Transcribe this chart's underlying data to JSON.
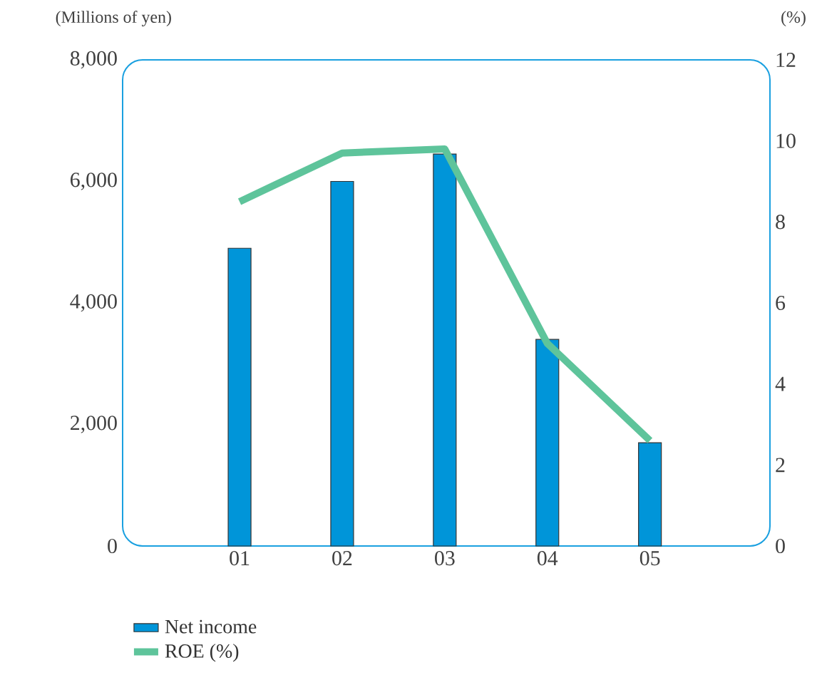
{
  "chart_data": {
    "type": "bar",
    "categories": [
      "01",
      "02",
      "03",
      "04",
      "05"
    ],
    "series": [
      {
        "name": "Net income",
        "color": "#0095d9",
        "values": [
          4900,
          6000,
          6450,
          3400,
          1700
        ]
      },
      {
        "name": "ROE (%)",
        "type": "line",
        "axis": "y2",
        "color": "#5ec49b",
        "values": [
          8.5,
          9.7,
          9.8,
          5.0,
          2.6
        ]
      }
    ],
    "ylabel": "(Millions of yen)",
    "y2label": "(%)",
    "ylim": [
      0,
      8000
    ],
    "yticks": [
      0,
      {
        "value": 2000,
        "label": "2,000"
      },
      {
        "value": 4000,
        "label": "4,000"
      },
      {
        "value": 6000,
        "label": "6,000"
      },
      {
        "value": 8000,
        "label": "8,000"
      }
    ],
    "y2lim": [
      0,
      12
    ],
    "y2ticks": [
      0,
      2,
      4,
      6,
      8,
      10,
      12
    ],
    "legend": "bottom left"
  }
}
